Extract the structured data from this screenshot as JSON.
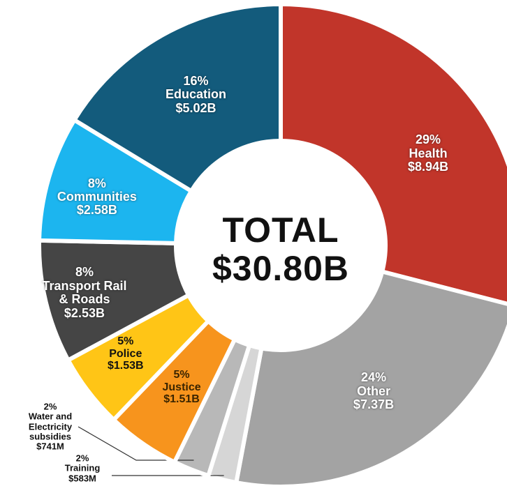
{
  "chart_data": {
    "type": "donut",
    "total_label": "TOTAL",
    "total": "$30.80B",
    "categories": [
      "Health",
      "Other",
      "Training",
      "Water and Electricity subsidies",
      "Justice",
      "Police",
      "Transport Rail & Roads",
      "Communities",
      "Education"
    ],
    "values": [
      8.94,
      7.37,
      0.583,
      0.741,
      1.51,
      1.53,
      2.53,
      2.58,
      5.02
    ],
    "value_labels": [
      "$8.94B",
      "$7.37B",
      "$583M",
      "$741M",
      "$1.51B",
      "$1.53B",
      "$2.53B",
      "$2.58B",
      "$5.02B"
    ],
    "percent_labels": [
      "29%",
      "24%",
      "2%",
      "2%",
      "5%",
      "5%",
      "8%",
      "8%",
      "16%"
    ],
    "colors": [
      "#c1352a",
      "#a3a3a3",
      "#d6d6d6",
      "#b8b8b8",
      "#f7941d",
      "#ffc516",
      "#454545",
      "#1cb5ef",
      "#135b7c"
    ],
    "label_colors": [
      "#ffffff",
      "#ffffff",
      "#111111",
      "#111111",
      "#3a2400",
      "#111111",
      "#ffffff",
      "#ffffff",
      "#ffffff"
    ]
  }
}
